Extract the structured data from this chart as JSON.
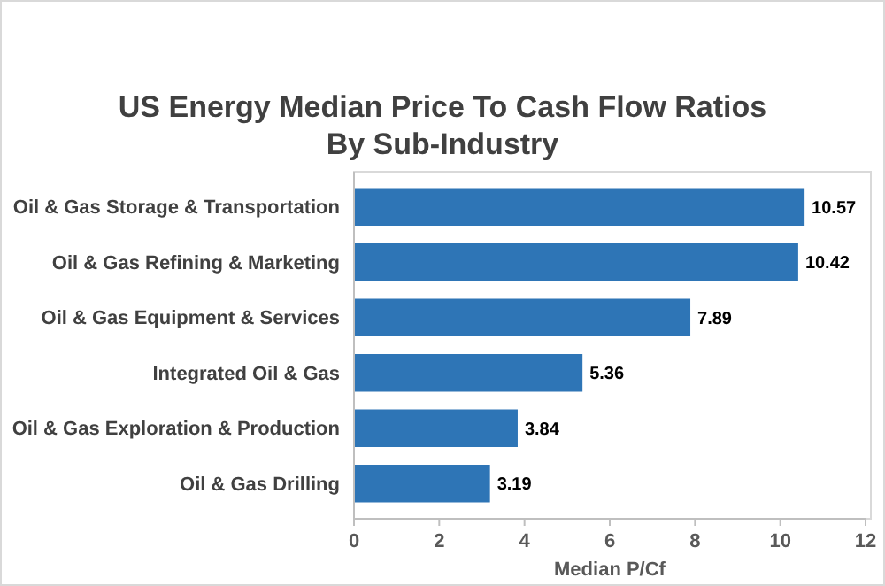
{
  "chart_data": {
    "type": "bar",
    "orientation": "horizontal",
    "title": "US Energy Median Price To Cash Flow Ratios\nBy Sub-Industry",
    "xlabel": "Median P/Cf",
    "categories": [
      "Oil & Gas Storage & Transportation",
      "Oil & Gas Refining & Marketing",
      "Oil & Gas Equipment & Services",
      "Integrated Oil & Gas",
      "Oil & Gas Exploration & Production",
      "Oil & Gas Drilling"
    ],
    "values": [
      10.57,
      10.42,
      7.89,
      5.36,
      3.84,
      3.19
    ],
    "color": "#2e75b6",
    "data_labels": true,
    "xlim": [
      0,
      12
    ],
    "xticks": [
      0,
      2,
      4,
      6,
      8,
      10,
      12
    ]
  }
}
